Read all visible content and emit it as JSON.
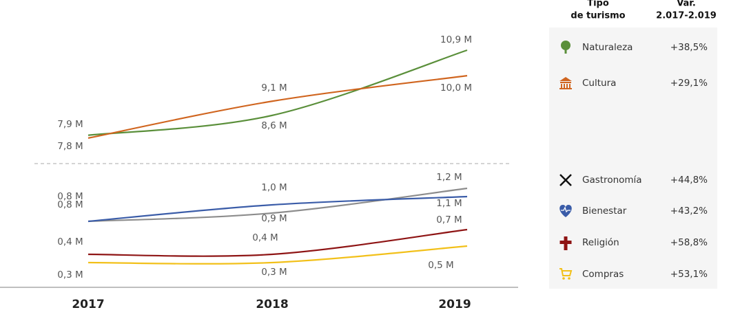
{
  "chart_data": {
    "type": "line",
    "categories": [
      "2017",
      "2018",
      "2019"
    ],
    "legend_header": {
      "name": [
        "Tipo",
        "de turismo"
      ],
      "variation": [
        "Var.",
        "2.017-2.019"
      ]
    },
    "panels": [
      {
        "ylim": [
          6.9,
          11.7
        ],
        "series": [
          {
            "name": "Naturaleza",
            "color": "#5a8f3a",
            "values": [
              7.9,
              8.6,
              10.9
            ],
            "value_labels": [
              "7,9 M",
              "8,6 M",
              "10,9 M"
            ],
            "variation": "+38,5%"
          },
          {
            "name": "Cultura",
            "color": "#d0651f",
            "values": [
              7.8,
              9.1,
              10.0
            ],
            "value_labels": [
              "7,8 M",
              "9,1 M",
              "10,0 M"
            ],
            "variation": "+29,1%"
          }
        ]
      },
      {
        "ylim": [
          0,
          1.5
        ],
        "series": [
          {
            "name": "Gastronomía",
            "color": "#8c8c8c",
            "values": [
              0.8,
              0.9,
              1.2
            ],
            "value_labels": [
              "0,8 M",
              "0,9 M",
              "1,2 M"
            ],
            "variation": "+44,8%"
          },
          {
            "name": "Bienestar",
            "color": "#3a5ca8",
            "values": [
              0.8,
              1.0,
              1.1
            ],
            "value_labels": [
              "0,8 M",
              "1,0 M",
              "1,1 M"
            ],
            "variation": "+43,2%"
          },
          {
            "name": "Religión",
            "color": "#8e1414",
            "values": [
              0.4,
              0.4,
              0.7
            ],
            "value_labels": [
              "0,4 M",
              "0,4 M",
              "0,7 M"
            ],
            "variation": "+58,8%"
          },
          {
            "name": "Compras",
            "color": "#f2c019",
            "values": [
              0.3,
              0.3,
              0.5
            ],
            "value_labels": [
              "0,3 M",
              "0,3 M",
              "0,5 M"
            ],
            "variation": "+53,1%"
          }
        ]
      }
    ]
  }
}
